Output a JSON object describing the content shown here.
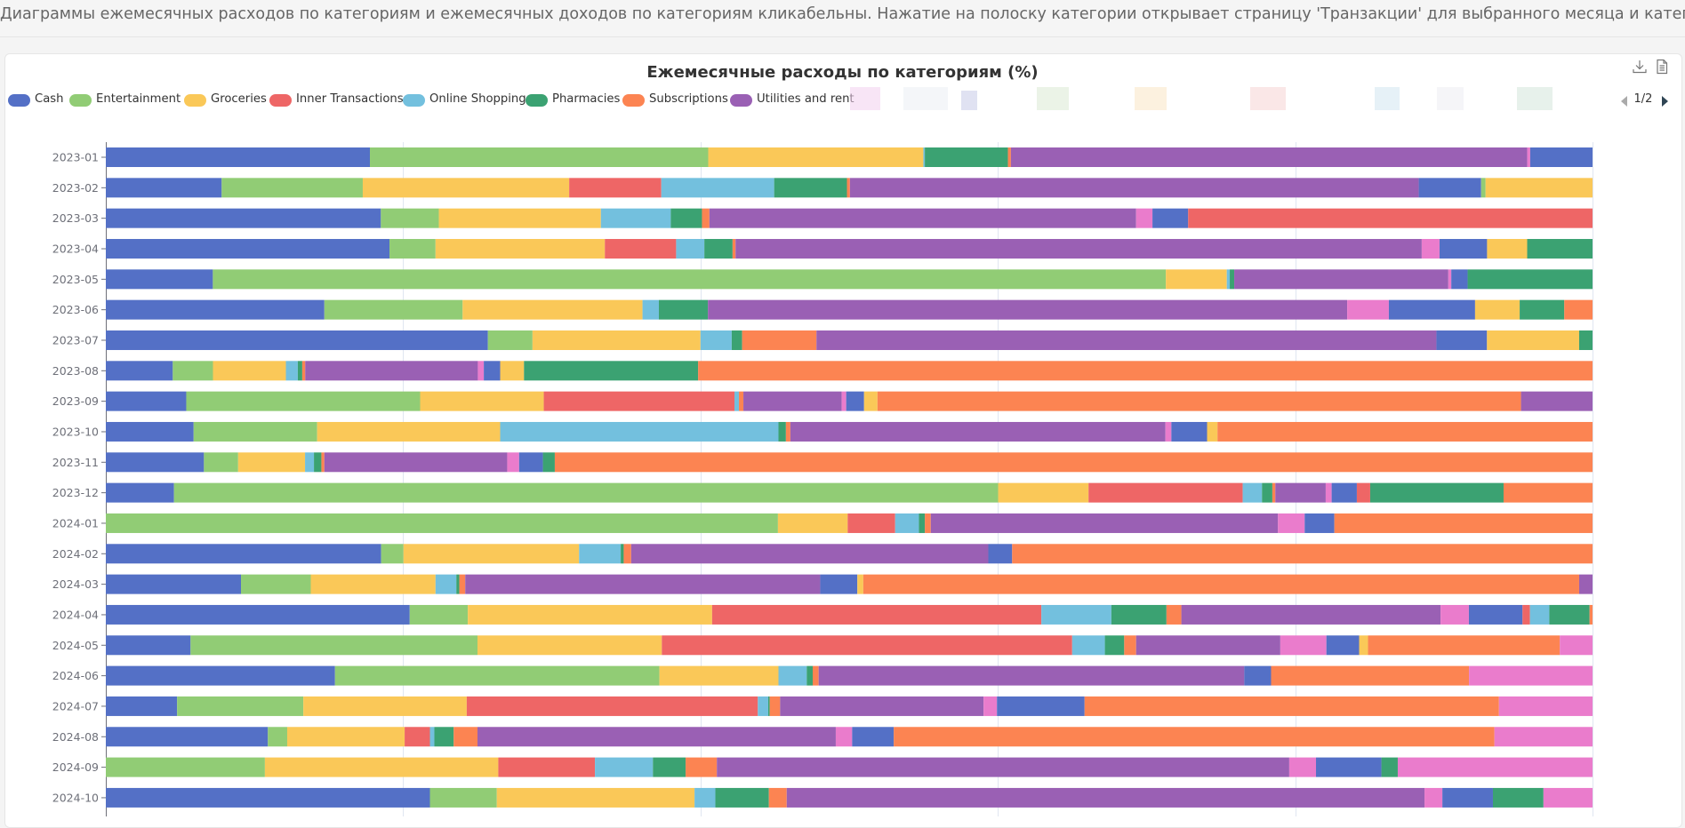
{
  "info_text": "Диаграммы ежемесячных расходов по категориям и ежемесячных доходов по категориям кликабельны. Нажатие на полоску категории открывает страницу 'Транзакции' для выбранного месяца и категории.",
  "toolbox": {
    "save_icon": "download-icon",
    "data_view_icon": "data-view-icon"
  },
  "legend": {
    "items": [
      {
        "label": "Cash",
        "color": "#5470c6"
      },
      {
        "label": "Entertainment",
        "color": "#91cc75"
      },
      {
        "label": "Groceries",
        "color": "#fac858"
      },
      {
        "label": "Inner Transactions",
        "color": "#ee6666"
      },
      {
        "label": "Online Shopping",
        "color": "#73c0de"
      },
      {
        "label": "Pharmacies",
        "color": "#3ba272"
      },
      {
        "label": "Subscriptions",
        "color": "#fc8452"
      },
      {
        "label": "Utilities and rent",
        "color": "#9a60b4"
      }
    ],
    "page_indicator": "1/2"
  },
  "chart_data": {
    "type": "bar",
    "orientation": "horizontal",
    "stacked": true,
    "title": "Ежемесячные расходы по категориям (%)",
    "categories": [
      "2023-01",
      "2023-02",
      "2023-03",
      "2023-04",
      "2023-05",
      "2023-06",
      "2023-07",
      "2023-08",
      "2023-09",
      "2023-10",
      "2023-11",
      "2023-12",
      "2024-01",
      "2024-02",
      "2024-03",
      "2024-04",
      "2024-05",
      "2024-06",
      "2024-07",
      "2024-08",
      "2024-09",
      "2024-10"
    ],
    "xlim": [
      0,
      100
    ],
    "x_grid": [
      0,
      20,
      40,
      60,
      80,
      100
    ],
    "segment_palette": [
      "#5470c6",
      "#91cc75",
      "#fac858",
      "#ee6666",
      "#73c0de",
      "#3ba272",
      "#fc8452",
      "#9a60b4",
      "#ea7ccc"
    ],
    "rows": [
      [
        [
          0,
          17.8
        ],
        [
          1,
          22.8
        ],
        [
          2,
          14.5
        ],
        [
          4,
          0.1
        ],
        [
          5,
          5.6
        ],
        [
          6,
          0.2
        ],
        [
          7,
          34.8
        ],
        [
          8,
          0.2
        ],
        [
          0,
          4.2
        ]
      ],
      [
        [
          0,
          7.8
        ],
        [
          1,
          9.5
        ],
        [
          2,
          13.9
        ],
        [
          3,
          6.2
        ],
        [
          4,
          7.6
        ],
        [
          5,
          4.9
        ],
        [
          6,
          0.2
        ],
        [
          7,
          38.3
        ],
        [
          0,
          4.2
        ],
        [
          1,
          0.3
        ],
        [
          2,
          7.2
        ]
      ],
      [
        [
          0,
          18.5
        ],
        [
          1,
          3.9
        ],
        [
          2,
          10.9
        ],
        [
          4,
          4.7
        ],
        [
          5,
          2.1
        ],
        [
          6,
          0.5
        ],
        [
          7,
          28.7
        ],
        [
          8,
          1.1
        ],
        [
          0,
          2.4
        ],
        [
          3,
          27.2
        ]
      ],
      [
        [
          0,
          19.1
        ],
        [
          1,
          3.1
        ],
        [
          2,
          11.4
        ],
        [
          3,
          4.8
        ],
        [
          4,
          1.9
        ],
        [
          5,
          1.9
        ],
        [
          6,
          0.2
        ],
        [
          7,
          46.2
        ],
        [
          8,
          1.2
        ],
        [
          0,
          3.2
        ],
        [
          2,
          2.7
        ],
        [
          5,
          4.4
        ]
      ],
      [
        [
          0,
          7.2
        ],
        [
          1,
          64.1
        ],
        [
          2,
          4.1
        ],
        [
          4,
          0.2
        ],
        [
          5,
          0.3
        ],
        [
          7,
          14.4
        ],
        [
          8,
          0.2
        ],
        [
          0,
          1.1
        ],
        [
          5,
          8.4
        ]
      ],
      [
        [
          0,
          14.7
        ],
        [
          1,
          9.3
        ],
        [
          2,
          12.1
        ],
        [
          4,
          1.1
        ],
        [
          5,
          3.3
        ],
        [
          7,
          43.0
        ],
        [
          8,
          2.8
        ],
        [
          0,
          5.8
        ],
        [
          2,
          3.0
        ],
        [
          5,
          3.0
        ],
        [
          6,
          1.9
        ]
      ],
      [
        [
          0,
          25.7
        ],
        [
          1,
          3.0
        ],
        [
          2,
          11.3
        ],
        [
          4,
          2.1
        ],
        [
          5,
          0.7
        ],
        [
          6,
          5.0
        ],
        [
          7,
          41.7
        ],
        [
          0,
          3.4
        ],
        [
          2,
          6.2
        ],
        [
          5,
          0.9
        ]
      ],
      [
        [
          0,
          4.5
        ],
        [
          1,
          2.7
        ],
        [
          2,
          4.9
        ],
        [
          4,
          0.8
        ],
        [
          5,
          0.3
        ],
        [
          6,
          0.2
        ],
        [
          7,
          11.6
        ],
        [
          8,
          0.4
        ],
        [
          0,
          1.1
        ],
        [
          2,
          1.6
        ],
        [
          5,
          11.7
        ],
        [
          6,
          60.1
        ]
      ],
      [
        [
          0,
          5.4
        ],
        [
          1,
          15.7
        ],
        [
          2,
          8.3
        ],
        [
          3,
          12.8
        ],
        [
          4,
          0.3
        ],
        [
          6,
          0.3
        ],
        [
          7,
          6.6
        ],
        [
          8,
          0.3
        ],
        [
          0,
          1.2
        ],
        [
          2,
          0.9
        ],
        [
          6,
          43.2
        ],
        [
          7,
          4.8
        ]
      ],
      [
        [
          0,
          5.9
        ],
        [
          1,
          8.3
        ],
        [
          2,
          12.3
        ],
        [
          4,
          18.7
        ],
        [
          5,
          0.5
        ],
        [
          6,
          0.3
        ],
        [
          7,
          25.2
        ],
        [
          8,
          0.4
        ],
        [
          0,
          2.4
        ],
        [
          2,
          0.7
        ],
        [
          6,
          25.2
        ]
      ],
      [
        [
          0,
          6.6
        ],
        [
          1,
          2.3
        ],
        [
          2,
          4.5
        ],
        [
          4,
          0.6
        ],
        [
          5,
          0.5
        ],
        [
          6,
          0.2
        ],
        [
          7,
          12.3
        ],
        [
          8,
          0.8
        ],
        [
          0,
          1.6
        ],
        [
          5,
          0.8
        ],
        [
          6,
          69.8
        ]
      ],
      [
        [
          0,
          4.6
        ],
        [
          1,
          55.6
        ],
        [
          2,
          6.1
        ],
        [
          3,
          10.4
        ],
        [
          4,
          1.3
        ],
        [
          5,
          0.7
        ],
        [
          6,
          0.2
        ],
        [
          7,
          3.4
        ],
        [
          8,
          0.4
        ],
        [
          0,
          1.7
        ],
        [
          3,
          0.9
        ],
        [
          5,
          9.0
        ],
        [
          6,
          6.0
        ]
      ],
      [
        [
          1,
          45.3
        ],
        [
          2,
          4.7
        ],
        [
          3,
          3.2
        ],
        [
          4,
          1.6
        ],
        [
          5,
          0.4
        ],
        [
          6,
          0.4
        ],
        [
          7,
          23.4
        ],
        [
          8,
          1.8
        ],
        [
          0,
          2.0
        ],
        [
          6,
          17.4
        ]
      ],
      [
        [
          0,
          18.5
        ],
        [
          1,
          1.5
        ],
        [
          2,
          11.8
        ],
        [
          4,
          2.8
        ],
        [
          5,
          0.2
        ],
        [
          6,
          0.5
        ],
        [
          7,
          24.0
        ],
        [
          0,
          1.6
        ],
        [
          6,
          39.0
        ]
      ],
      [
        [
          0,
          9.1
        ],
        [
          1,
          4.7
        ],
        [
          2,
          8.4
        ],
        [
          4,
          1.4
        ],
        [
          5,
          0.2
        ],
        [
          6,
          0.4
        ],
        [
          7,
          23.9
        ],
        [
          0,
          2.5
        ],
        [
          2,
          0.4
        ],
        [
          6,
          48.2
        ],
        [
          7,
          0.9
        ]
      ],
      [
        [
          0,
          20.4
        ],
        [
          1,
          3.9
        ],
        [
          2,
          16.4
        ],
        [
          3,
          22.1
        ],
        [
          4,
          4.7
        ],
        [
          5,
          3.7
        ],
        [
          6,
          1.0
        ],
        [
          7,
          17.4
        ],
        [
          8,
          1.9
        ],
        [
          0,
          3.6
        ],
        [
          3,
          0.5
        ],
        [
          4,
          1.3
        ],
        [
          5,
          2.7
        ],
        [
          6,
          0.2
        ]
      ],
      [
        [
          0,
          5.7
        ],
        [
          1,
          19.3
        ],
        [
          2,
          12.4
        ],
        [
          3,
          27.6
        ],
        [
          4,
          2.2
        ],
        [
          5,
          1.3
        ],
        [
          6,
          0.8
        ],
        [
          7,
          9.7
        ],
        [
          8,
          3.1
        ],
        [
          0,
          2.2
        ],
        [
          2,
          0.6
        ],
        [
          6,
          12.9
        ],
        [
          8,
          2.2
        ]
      ],
      [
        [
          0,
          15.4
        ],
        [
          1,
          21.8
        ],
        [
          2,
          8.0
        ],
        [
          4,
          1.9
        ],
        [
          5,
          0.4
        ],
        [
          6,
          0.4
        ],
        [
          7,
          28.6
        ],
        [
          0,
          1.8
        ],
        [
          6,
          13.3
        ],
        [
          8,
          8.3
        ]
      ],
      [
        [
          0,
          4.8
        ],
        [
          1,
          8.5
        ],
        [
          2,
          11.0
        ],
        [
          3,
          19.6
        ],
        [
          4,
          0.7
        ],
        [
          5,
          0.1
        ],
        [
          6,
          0.7
        ],
        [
          7,
          13.7
        ],
        [
          8,
          0.9
        ],
        [
          0,
          5.9
        ],
        [
          6,
          27.9
        ],
        [
          8,
          6.3
        ]
      ],
      [
        [
          0,
          10.9
        ],
        [
          1,
          1.3
        ],
        [
          2,
          7.9
        ],
        [
          3,
          1.7
        ],
        [
          4,
          0.3
        ],
        [
          5,
          1.3
        ],
        [
          6,
          1.6
        ],
        [
          7,
          24.1
        ],
        [
          8,
          1.1
        ],
        [
          0,
          2.8
        ],
        [
          6,
          40.4
        ],
        [
          8,
          6.6
        ]
      ],
      [
        [
          1,
          10.7
        ],
        [
          2,
          15.7
        ],
        [
          3,
          6.5
        ],
        [
          4,
          3.9
        ],
        [
          5,
          2.2
        ],
        [
          6,
          2.1
        ],
        [
          7,
          38.5
        ],
        [
          8,
          1.8
        ],
        [
          0,
          4.4
        ],
        [
          5,
          1.1
        ],
        [
          8,
          13.1
        ]
      ],
      [
        [
          0,
          21.8
        ],
        [
          1,
          4.5
        ],
        [
          2,
          13.3
        ],
        [
          4,
          1.4
        ],
        [
          5,
          3.6
        ],
        [
          6,
          1.2
        ],
        [
          7,
          42.9
        ],
        [
          8,
          1.2
        ],
        [
          0,
          3.4
        ],
        [
          5,
          3.4
        ],
        [
          8,
          3.3
        ]
      ]
    ]
  }
}
